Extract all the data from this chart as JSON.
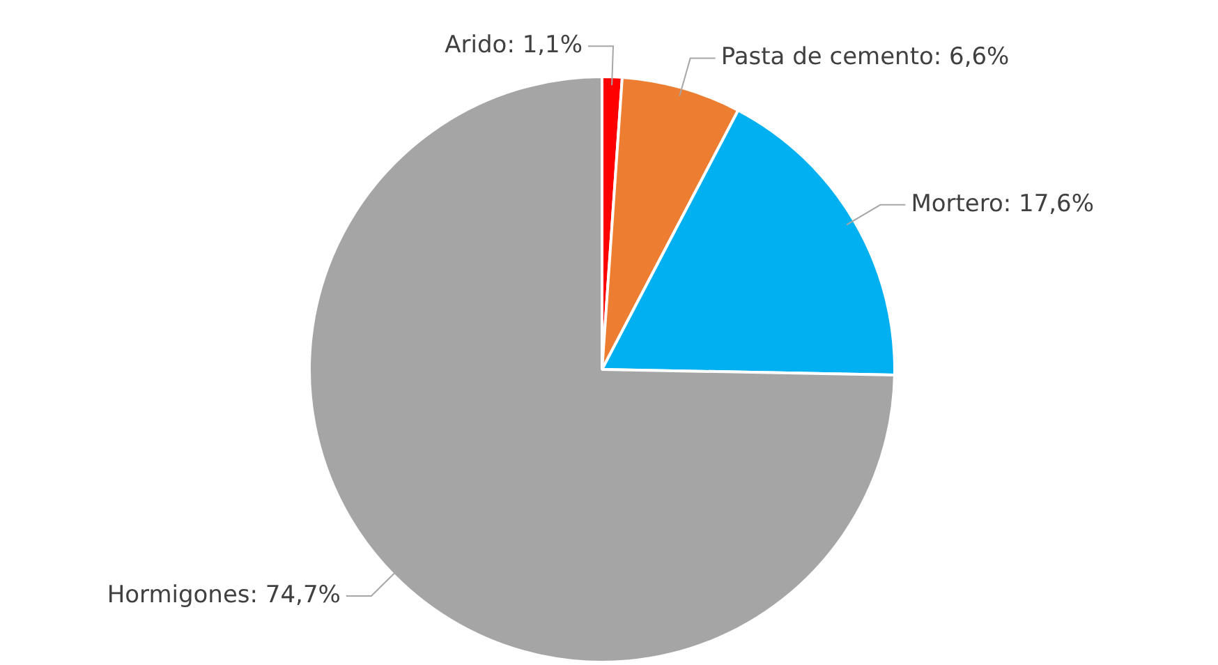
{
  "chart_data": {
    "type": "pie",
    "categories": [
      "Arido",
      "Pasta de cemento",
      "Mortero",
      "Hormigones"
    ],
    "values": [
      1.1,
      6.6,
      17.6,
      74.7
    ],
    "colors": [
      "#ff0000",
      "#ed7d31",
      "#00b0f0",
      "#a5a5a5"
    ],
    "value_labels": [
      "1,1%",
      "6,6%",
      "17,6%",
      "74,7%"
    ],
    "legend": false
  }
}
